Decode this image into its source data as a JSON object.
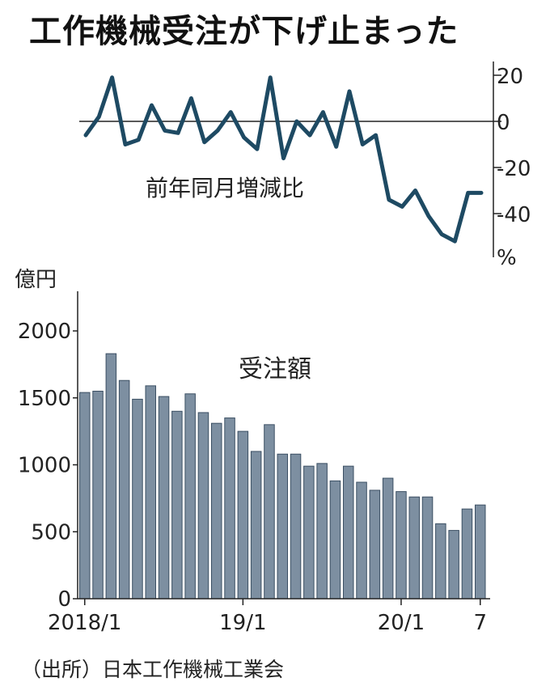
{
  "title": "工作機械受注が下げ止まった",
  "source": "（出所）日本工作機械工業会",
  "chart_data": [
    {
      "type": "line",
      "series": [
        {
          "name": "前年同月増減比",
          "values": [
            -6,
            2,
            19,
            -10,
            -8,
            7,
            -4,
            -5,
            10,
            -9,
            -4,
            4,
            -7,
            -12,
            19,
            -16,
            0,
            -6,
            4,
            -11,
            13,
            -10,
            -6,
            -34,
            -37,
            -30,
            -41,
            -49,
            -52,
            -31,
            -31
          ]
        }
      ],
      "series_label": "前年同月増減比",
      "y_ticks": [
        "20",
        "0",
        "-20",
        "-40"
      ],
      "y_unit": "%",
      "ylim": [
        -60,
        22
      ],
      "color": "#1e4a63"
    },
    {
      "type": "bar",
      "series": [
        {
          "name": "受注額",
          "values": [
            1540,
            1550,
            1830,
            1630,
            1490,
            1590,
            1510,
            1400,
            1530,
            1390,
            1310,
            1350,
            1250,
            1100,
            1300,
            1080,
            1080,
            990,
            1010,
            880,
            990,
            870,
            810,
            900,
            800,
            760,
            760,
            560,
            510,
            670,
            700
          ]
        }
      ],
      "series_label": "受注額",
      "y_unit": "億円",
      "y_ticks": [
        "2000",
        "1500",
        "1000",
        "500",
        "0"
      ],
      "ylim": [
        0,
        2200
      ],
      "x_labels": [
        "2018/1",
        "19/1",
        "20/1",
        "7"
      ],
      "bar_color": "#7d8fa1"
    }
  ]
}
